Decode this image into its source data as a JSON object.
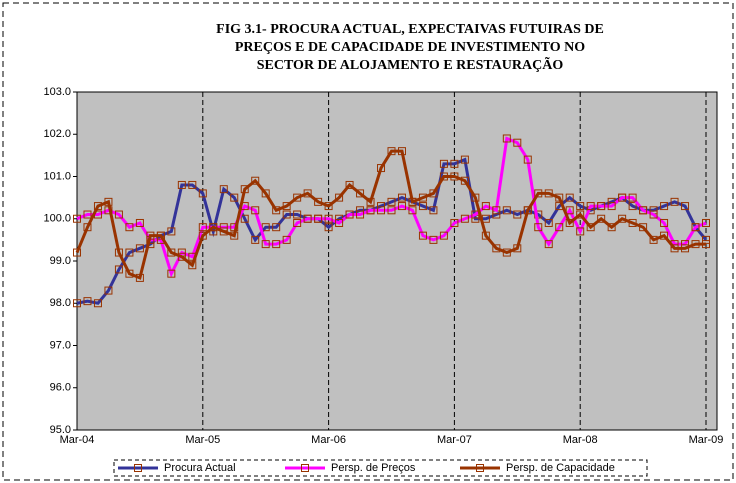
{
  "chart_data": {
    "type": "line",
    "title": [
      "FIG 3.1- PROCURA ACTUAL, EXPECTAIVAS FUTUIRAS DE",
      "PREÇOS E DE  CAPACIDADE DE INVESTIMENTO NO",
      "SECTOR DE ALOJAMENTO E RESTAURAÇÃO"
    ],
    "categories": [
      "Mar-04",
      null,
      null,
      null,
      null,
      null,
      null,
      null,
      null,
      null,
      null,
      null,
      "Mar-05",
      null,
      null,
      null,
      null,
      null,
      null,
      null,
      null,
      null,
      null,
      null,
      "Mar-06",
      null,
      null,
      null,
      null,
      null,
      null,
      null,
      null,
      null,
      null,
      null,
      "Mar-07",
      null,
      null,
      null,
      null,
      null,
      null,
      null,
      null,
      null,
      null,
      null,
      "Mar-08",
      null,
      null,
      null,
      null,
      null,
      null,
      null,
      null,
      null,
      null,
      null,
      "Mar-09"
    ],
    "series": [
      {
        "name": "Procura Actual",
        "color": "#333399",
        "values": [
          98.0,
          98.05,
          98.0,
          98.3,
          98.8,
          99.2,
          99.3,
          99.4,
          99.6,
          99.7,
          100.8,
          100.8,
          100.6,
          99.7,
          100.7,
          100.5,
          100.0,
          99.5,
          99.8,
          99.8,
          100.1,
          100.1,
          100.0,
          100.0,
          99.8,
          100.0,
          100.1,
          100.2,
          100.2,
          100.3,
          100.4,
          100.5,
          100.4,
          100.3,
          100.2,
          101.3,
          101.3,
          101.4,
          100.0,
          100.0,
          100.1,
          100.2,
          100.1,
          100.2,
          100.1,
          99.9,
          100.3,
          100.5,
          100.3,
          100.2,
          100.3,
          100.4,
          100.5,
          100.3,
          100.2,
          100.2,
          100.3,
          100.4,
          100.3,
          99.8,
          99.5
        ]
      },
      {
        "name": "Persp. de Preços",
        "color": "#ff00ff",
        "values": [
          100.0,
          100.1,
          100.1,
          100.2,
          100.1,
          99.8,
          99.9,
          99.5,
          99.5,
          98.7,
          99.2,
          99.1,
          99.8,
          99.8,
          99.8,
          99.8,
          100.3,
          100.2,
          99.4,
          99.4,
          99.5,
          99.9,
          100.0,
          100.0,
          100.0,
          99.9,
          100.1,
          100.1,
          100.2,
          100.2,
          100.2,
          100.3,
          100.2,
          99.6,
          99.5,
          99.6,
          99.9,
          100.0,
          100.1,
          100.3,
          100.2,
          101.9,
          101.8,
          101.4,
          99.8,
          99.4,
          99.8,
          100.2,
          99.7,
          100.3,
          100.3,
          100.3,
          100.5,
          100.5,
          100.2,
          100.1,
          99.9,
          99.4,
          99.4,
          99.8,
          99.9
        ]
      },
      {
        "name": "Persp. de Capacidade",
        "color": "#993300",
        "values": [
          99.2,
          99.8,
          100.3,
          100.4,
          99.2,
          98.7,
          98.6,
          99.6,
          99.6,
          99.2,
          99.1,
          98.9,
          99.6,
          99.8,
          99.7,
          99.6,
          100.7,
          100.9,
          100.6,
          100.2,
          100.3,
          100.5,
          100.6,
          100.4,
          100.3,
          100.5,
          100.8,
          100.6,
          100.4,
          101.2,
          101.6,
          101.6,
          100.4,
          100.5,
          100.6,
          101.0,
          101.0,
          100.9,
          100.5,
          99.6,
          99.3,
          99.2,
          99.3,
          100.2,
          100.6,
          100.6,
          100.5,
          99.9,
          100.1,
          99.8,
          100.0,
          99.8,
          100.0,
          99.9,
          99.8,
          99.5,
          99.6,
          99.3,
          99.3,
          99.4,
          99.4
        ]
      }
    ],
    "ylim": [
      95,
      103
    ],
    "yticks": [
      {
        "value": 95,
        "label": "95.0"
      },
      {
        "value": 96,
        "label": "96.0"
      },
      {
        "value": 97,
        "label": "97.0"
      },
      {
        "value": 98,
        "label": "98.0"
      },
      {
        "value": 99,
        "label": "99.0"
      },
      {
        "value": 100,
        "label": "100.0"
      },
      {
        "value": 101,
        "label": "101.0"
      },
      {
        "value": 102,
        "label": "102.0"
      },
      {
        "value": 103,
        "label": "103.0"
      }
    ],
    "grid": true,
    "legend": "bottom"
  }
}
